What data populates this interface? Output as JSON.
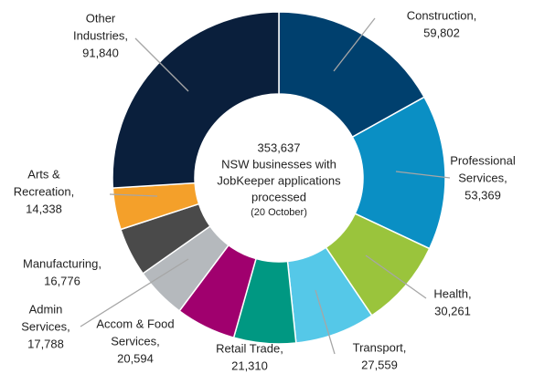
{
  "chart_data": {
    "type": "donut",
    "categories": [
      [
        "Construction,"
      ],
      [
        "Professional",
        "Services,"
      ],
      [
        "Health,"
      ],
      [
        "Transport,"
      ],
      [
        "Retail Trade,"
      ],
      [
        "Accom & Food",
        "Services,"
      ],
      [
        "Admin",
        "Services,"
      ],
      [
        "Manufacturing,"
      ],
      [
        "Arts &",
        "Recreation,"
      ],
      [
        "Other",
        "Industries,"
      ]
    ],
    "values": [
      59802,
      53369,
      30261,
      27559,
      21310,
      20594,
      17788,
      16776,
      14338,
      91840
    ],
    "value_labels": [
      "59,802",
      "53,369",
      "30,261",
      "27,559",
      "21,310",
      "20,594",
      "17,788",
      "16,776",
      "14,338",
      "91,840"
    ],
    "colors": [
      "#00406e",
      "#0a8fc4",
      "#9ac43c",
      "#55c8e8",
      "#009882",
      "#a0006e",
      "#b5b9bd",
      "#4a4a4a",
      "#f4a02a",
      "#0a1f3c"
    ],
    "center_text": [
      "353,637",
      "NSW businesses with",
      "JobKeeper applications",
      "processed"
    ],
    "center_note": "(20 October)"
  }
}
